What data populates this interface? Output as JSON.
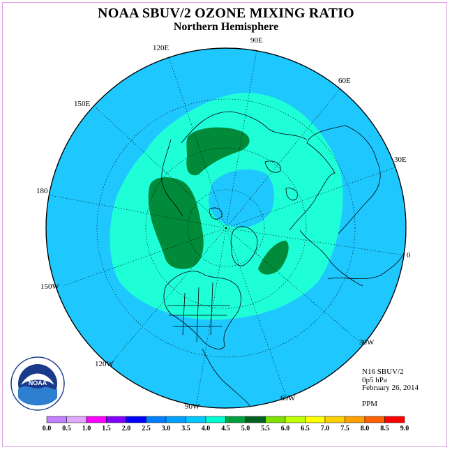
{
  "title": "NOAA SBUV/2 OZONE MIXING RATIO",
  "subtitle": "Northern Hemisphere",
  "longitude_labels": {
    "lon_90E": "90E",
    "lon_120E": "120E",
    "lon_60E": "60E",
    "lon_150E": "150E",
    "lon_30E": "30E",
    "lon_180": "180",
    "lon_0": "0",
    "lon_150W": "150W",
    "lon_30W": "30W",
    "lon_120W": "120W",
    "lon_60W": "60W",
    "lon_90W": "90W"
  },
  "info": {
    "satellite": "N16 SBUV/2",
    "level": "0p5 hPa",
    "date": "February 26, 2014",
    "units": "PPM"
  },
  "colorbar": {
    "labels": [
      "0.0",
      "0.5",
      "1.0",
      "1.5",
      "2.0",
      "2.5",
      "3.0",
      "3.5",
      "4.0",
      "4.5",
      "5.0",
      "5.5",
      "6.0",
      "6.5",
      "7.0",
      "7.5",
      "8.0",
      "8.5",
      "9.0"
    ],
    "colors": [
      "#c080ff",
      "#e0a8ff",
      "#ff00ff",
      "#8000ff",
      "#0000ff",
      "#0080ff",
      "#00a0ff",
      "#00c8ff",
      "#00ffd0",
      "#00a040",
      "#006020",
      "#80e000",
      "#c0ff00",
      "#ffff00",
      "#ffd000",
      "#ffa000",
      "#ff6000",
      "#ff0000",
      "#804020"
    ]
  },
  "logo": {
    "text": "NOAA",
    "ring_text": "NATIONAL OCEANIC AND ATMOSPHERIC ADMINISTRATION U.S. DEPARTMENT OF COMMERCE"
  },
  "colors": {
    "disk": "#1ec8ff",
    "band": "#1effd8",
    "high": "#008a3a",
    "frame": "#e0a0e0"
  }
}
